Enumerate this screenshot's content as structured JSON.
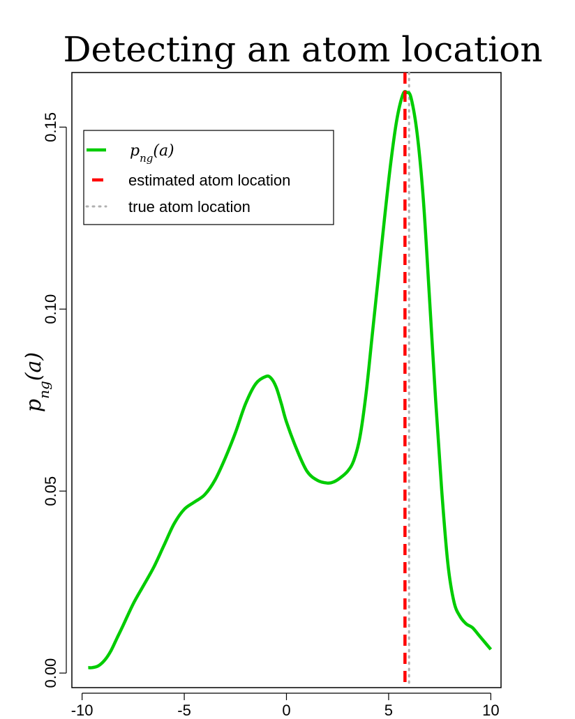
{
  "chart_data": {
    "type": "line",
    "title": "Detecting an atom location",
    "xlabel": "",
    "ylabel": "p_ng(a)",
    "xlim": [
      -10.5,
      10.5
    ],
    "ylim": [
      -0.004,
      0.165
    ],
    "x_ticks": [
      -10,
      -5,
      0,
      5,
      10
    ],
    "x_tick_labels": [
      "-10",
      "-5",
      "0",
      "5",
      "10"
    ],
    "y_ticks": [
      0.0,
      0.05,
      0.1,
      0.15
    ],
    "y_tick_labels": [
      "0.00",
      "0.05",
      "0.10",
      "0.15"
    ],
    "grid": false,
    "legend_position": "top-left",
    "series": [
      {
        "name": "p_ng(a)",
        "color": "#00cc00",
        "style": "solid",
        "x": [
          -9.7,
          -9.5,
          -9.2,
          -8.9,
          -8.6,
          -8.3,
          -8.0,
          -7.5,
          -7.0,
          -6.5,
          -6.0,
          -5.5,
          -5.0,
          -4.5,
          -4.0,
          -3.5,
          -3.0,
          -2.5,
          -2.0,
          -1.5,
          -1.0,
          -0.75,
          -0.5,
          -0.25,
          0.0,
          0.5,
          1.0,
          1.5,
          2.0,
          2.3,
          2.6,
          3.0,
          3.3,
          3.6,
          3.9,
          4.2,
          4.5,
          4.8,
          5.1,
          5.4,
          5.7,
          5.9,
          6.1,
          6.4,
          6.7,
          7.0,
          7.3,
          7.6,
          7.9,
          8.2,
          8.5,
          8.8,
          9.1,
          9.4,
          9.7,
          10.0
        ],
        "y": [
          0.0015,
          0.0015,
          0.002,
          0.0035,
          0.006,
          0.0095,
          0.013,
          0.019,
          0.024,
          0.029,
          0.035,
          0.041,
          0.045,
          0.047,
          0.049,
          0.053,
          0.059,
          0.066,
          0.074,
          0.0795,
          0.0815,
          0.081,
          0.0785,
          0.074,
          0.069,
          0.0615,
          0.0555,
          0.053,
          0.0522,
          0.0525,
          0.0535,
          0.0555,
          0.0585,
          0.065,
          0.077,
          0.093,
          0.109,
          0.125,
          0.14,
          0.152,
          0.159,
          0.1595,
          0.158,
          0.148,
          0.13,
          0.103,
          0.075,
          0.05,
          0.03,
          0.0195,
          0.0155,
          0.0135,
          0.0125,
          0.0105,
          0.0085,
          0.0065
        ]
      },
      {
        "name": "estimated atom location",
        "color": "#ff0000",
        "style": "dashed",
        "x_vertical": 5.8
      },
      {
        "name": "true atom location",
        "color": "#b0b0b0",
        "style": "dotted",
        "x_vertical": 6.0
      }
    ]
  },
  "legend": {
    "entries": [
      {
        "label": "p_ng(a)",
        "color": "#00cc00",
        "style": "solid"
      },
      {
        "label": "estimated atom location",
        "color": "#ff0000",
        "style": "dashed"
      },
      {
        "label": "true atom location",
        "color": "#b0b0b0",
        "style": "dotted"
      }
    ]
  },
  "colors": {
    "axis": "#000000",
    "background": "#ffffff"
  }
}
